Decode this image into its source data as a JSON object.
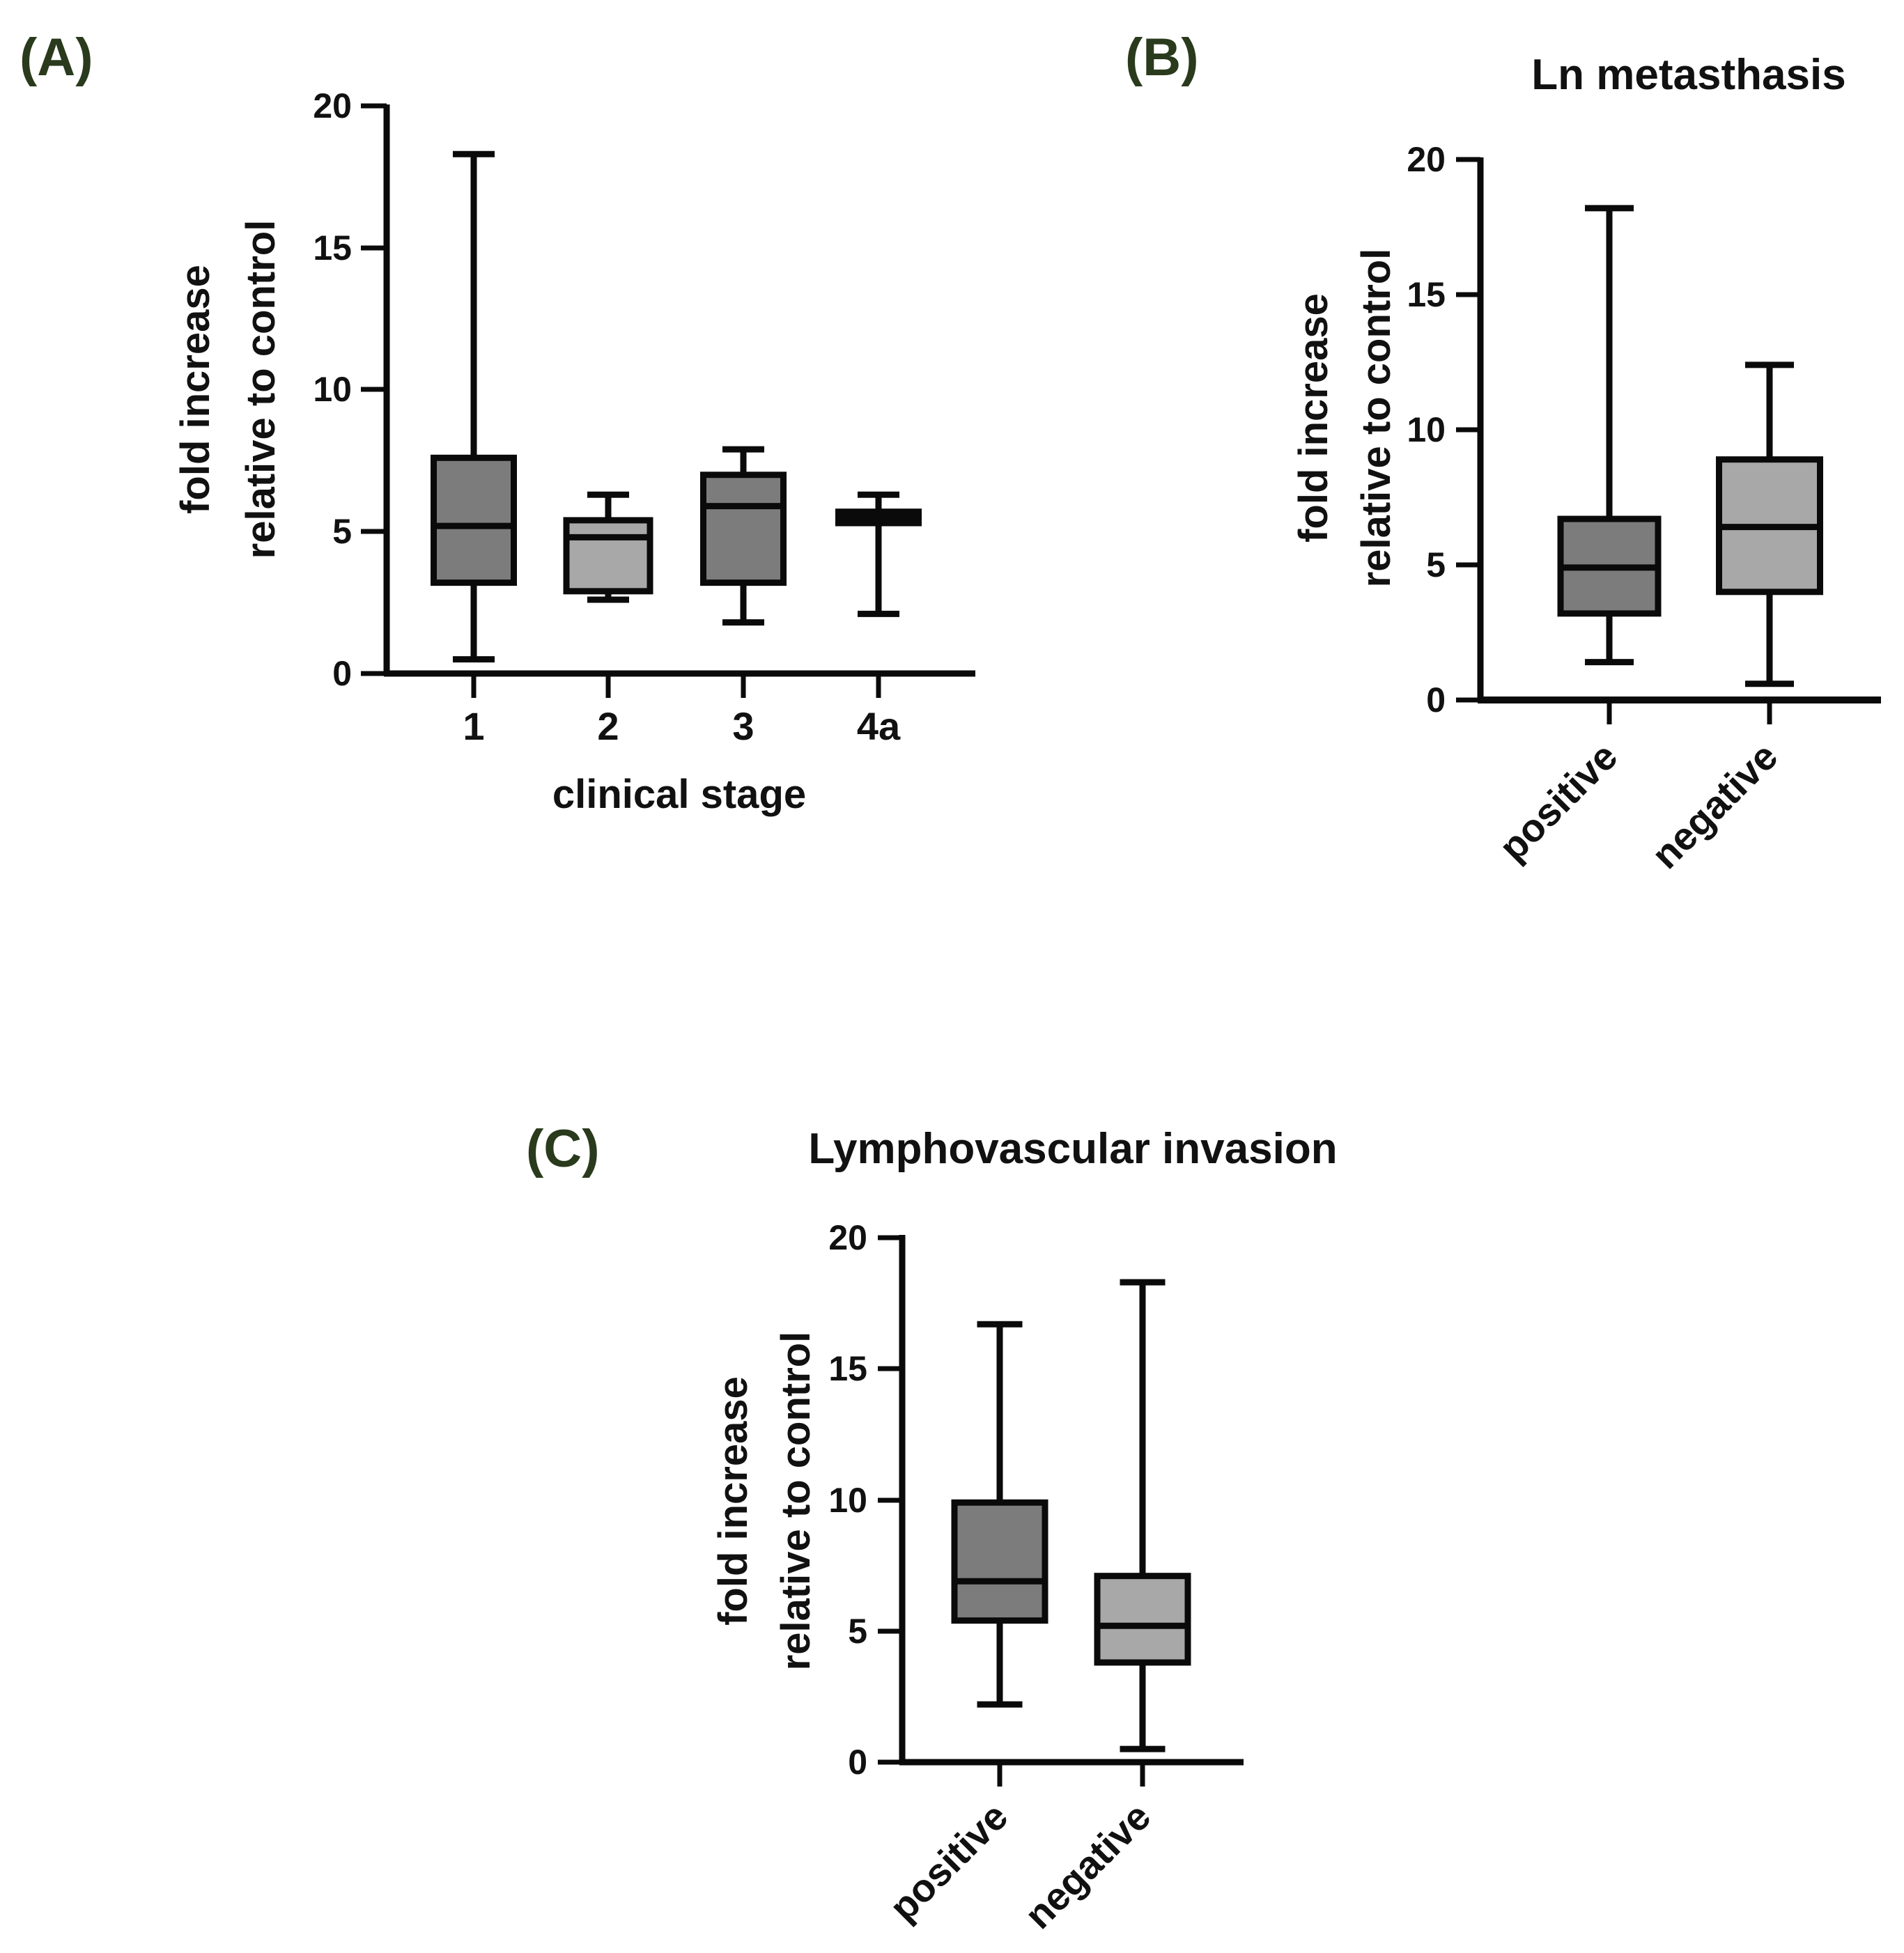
{
  "figure": {
    "panels": [
      "(A)",
      "(B)",
      "(C)"
    ]
  },
  "colors": {
    "dark_box": "#7c7c7c",
    "light_box": "#a8a8a8",
    "stroke": "#0a0a0a",
    "panel_label": "#2a3a1c"
  },
  "chart_data": [
    {
      "type": "box",
      "panel_label": "(A)",
      "title": "",
      "ylabel_line1": "fold increase",
      "ylabel_line2": "relative to control",
      "xlabel": "clinical stage",
      "ylim": [
        0,
        20
      ],
      "yticks": [
        "0",
        "5",
        "10",
        "15",
        "20"
      ],
      "categories": [
        "1",
        "2",
        "3",
        "4a"
      ],
      "boxes": [
        {
          "min": 0.5,
          "q1": 3.2,
          "median": 5.2,
          "q3": 7.6,
          "max": 18.3,
          "fill": "dark"
        },
        {
          "min": 2.6,
          "q1": 2.9,
          "median": 4.8,
          "q3": 5.4,
          "max": 6.3,
          "fill": "light"
        },
        {
          "min": 1.8,
          "q1": 3.2,
          "median": 5.9,
          "q3": 7.0,
          "max": 7.9,
          "fill": "dark"
        },
        {
          "min": 2.1,
          "q1": 5.3,
          "median": 5.5,
          "q3": 5.7,
          "max": 6.3,
          "fill": "dark"
        }
      ]
    },
    {
      "type": "box",
      "panel_label": "(B)",
      "title": "Ln metasthasis",
      "ylabel_line1": "fold increase",
      "ylabel_line2": "relative to control",
      "xlabel": "",
      "ylim": [
        0,
        20
      ],
      "yticks": [
        "0",
        "5",
        "10",
        "15",
        "20"
      ],
      "categories": [
        "positive",
        "negative"
      ],
      "boxes": [
        {
          "min": 1.4,
          "q1": 3.2,
          "median": 4.9,
          "q3": 6.7,
          "max": 18.2,
          "fill": "dark"
        },
        {
          "min": 0.6,
          "q1": 4.0,
          "median": 6.4,
          "q3": 8.9,
          "max": 12.4,
          "fill": "light"
        }
      ]
    },
    {
      "type": "box",
      "panel_label": "(C)",
      "title": "Lymphovascular invasion",
      "ylabel_line1": "fold increase",
      "ylabel_line2": "relative to control",
      "xlabel": "",
      "ylim": [
        0,
        20
      ],
      "yticks": [
        "0",
        "5",
        "10",
        "15",
        "20"
      ],
      "categories": [
        "positive",
        "negative"
      ],
      "boxes": [
        {
          "min": 2.2,
          "q1": 5.4,
          "median": 6.9,
          "q3": 9.9,
          "max": 16.7,
          "fill": "dark"
        },
        {
          "min": 0.5,
          "q1": 3.8,
          "median": 5.2,
          "q3": 7.1,
          "max": 18.3,
          "fill": "light"
        }
      ]
    }
  ]
}
